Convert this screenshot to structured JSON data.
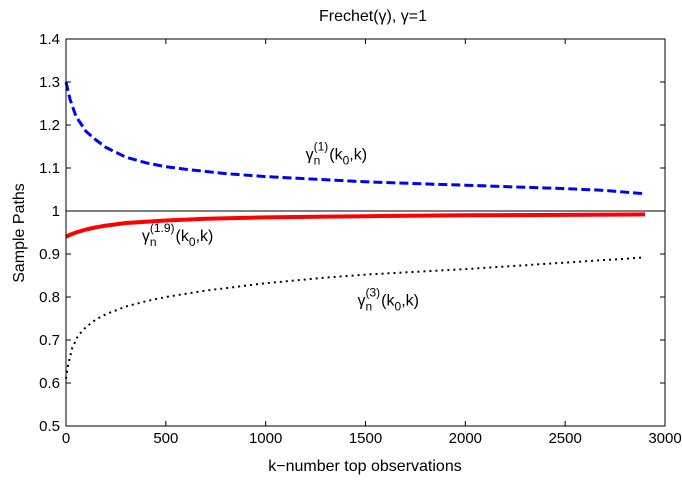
{
  "chart_data": {
    "type": "line",
    "title": "Frechet(γ),    γ=1",
    "xlabel": "k−number top observations",
    "ylabel": "Sample Paths",
    "xlim": [
      0,
      3000
    ],
    "ylim": [
      0.5,
      1.4
    ],
    "xticks": [
      0,
      500,
      1000,
      1500,
      2000,
      2500,
      3000
    ],
    "yticks": [
      0.5,
      0.6,
      0.7,
      0.8,
      0.9,
      1.0,
      1.1,
      1.2,
      1.3,
      1.4
    ],
    "xtick_labels": [
      "0",
      "500",
      "1000",
      "1500",
      "2000",
      "2500",
      "3000"
    ],
    "ytick_labels": [
      "0.5",
      "0.6",
      "0.7",
      "0.8",
      "0.9",
      "1",
      "1.1",
      "1.2",
      "1.3",
      "1.4"
    ],
    "grid": false,
    "reference_line": {
      "y": 1.0,
      "color": "#000000"
    },
    "series": [
      {
        "key": "g1",
        "color": "#0000ff",
        "style": "dashed",
        "x": [
          0,
          20,
          50,
          100,
          150,
          200,
          300,
          400,
          500,
          600,
          800,
          1000,
          1200,
          1500,
          1800,
          2000,
          2300,
          2500,
          2700,
          2900
        ],
        "y": [
          1.3,
          1.26,
          1.22,
          1.185,
          1.165,
          1.148,
          1.125,
          1.112,
          1.103,
          1.097,
          1.087,
          1.08,
          1.075,
          1.068,
          1.063,
          1.06,
          1.055,
          1.052,
          1.048,
          1.04
        ]
      },
      {
        "key": "g19",
        "color": "#ff0000",
        "style": "solid",
        "x": [
          0,
          20,
          50,
          100,
          150,
          200,
          300,
          400,
          500,
          700,
          1000,
          1300,
          1500,
          2000,
          2500,
          2900
        ],
        "y": [
          0.94,
          0.945,
          0.95,
          0.957,
          0.962,
          0.966,
          0.972,
          0.975,
          0.978,
          0.982,
          0.985,
          0.987,
          0.988,
          0.99,
          0.991,
          0.992
        ]
      },
      {
        "key": "g3",
        "color": "#000000",
        "style": "dotted",
        "x": [
          0,
          10,
          30,
          60,
          100,
          150,
          200,
          300,
          400,
          500,
          700,
          1000,
          1300,
          1500,
          2000,
          2500,
          2900
        ],
        "y": [
          0.61,
          0.64,
          0.68,
          0.71,
          0.73,
          0.748,
          0.76,
          0.778,
          0.79,
          0.8,
          0.815,
          0.832,
          0.845,
          0.852,
          0.865,
          0.88,
          0.892
        ]
      }
    ],
    "annotations": [
      {
        "key": "g1",
        "x": 1200,
        "y": 1.12,
        "sym": "γ",
        "sub": "n",
        "sup": "(1)",
        "rest": "(k",
        "sub2": "0",
        "rest2": ",k)"
      },
      {
        "key": "g19",
        "x": 380,
        "y": 0.93,
        "sym": "γ",
        "sub": "n",
        "sup": "(1.9)",
        "rest": "(k",
        "sub2": "0",
        "rest2": ",k)"
      },
      {
        "key": "g3",
        "x": 1460,
        "y": 0.78,
        "sym": "γ",
        "sub": "n",
        "sup": "(3)",
        "rest": "(k",
        "sub2": "0",
        "rest2": ",k)"
      }
    ]
  }
}
